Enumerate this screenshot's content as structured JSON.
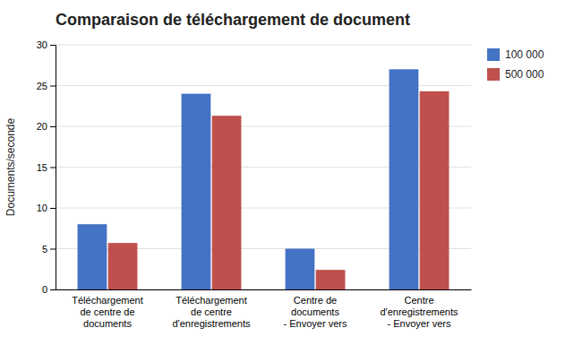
{
  "chart_data": {
    "type": "bar",
    "title": "Comparaison de téléchargement de document",
    "ylabel": "Documents/seconde",
    "categories": [
      "Téléchargement\nde centre de\ndocuments",
      "Téléchargement\nde centre\nd'enregistrements",
      "Centre de\ndocuments\n- Envoyer vers",
      "Centre\nd'enregistrements\n- Envoyer vers"
    ],
    "series": [
      {
        "name": "100 000",
        "color": "#4472C4",
        "values": [
          8,
          24,
          5,
          27
        ]
      },
      {
        "name": "500 000",
        "color": "#C0504D",
        "values": [
          5.7,
          21.3,
          2.4,
          24.3
        ]
      }
    ],
    "ylim": [
      0,
      30
    ],
    "yticks": [
      0,
      5,
      10,
      15,
      20,
      25,
      30
    ],
    "grid": true,
    "legend": "right"
  }
}
